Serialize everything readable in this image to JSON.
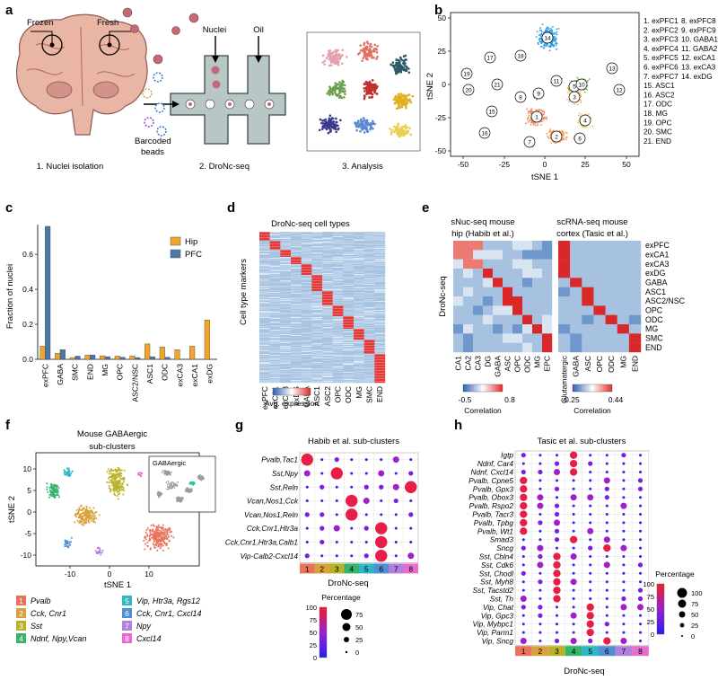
{
  "panels": {
    "a": "a",
    "b": "b",
    "c": "c",
    "d": "d",
    "e": "e",
    "f": "f",
    "g": "g",
    "h": "h"
  },
  "a": {
    "frozen": "Frozen",
    "fresh": "Fresh",
    "nuclei": "Nuclei",
    "oil": "Oil",
    "barcoded": "Barcoded",
    "beads": "beads",
    "step1": "1. Nuclei isolation",
    "step2": "2. DroNc-seq",
    "step3": "3. Analysis"
  },
  "b": {
    "xlabel": "tSNE 1",
    "ylabel": "tSNE 2",
    "xticks": [
      "-50",
      "-25",
      "0",
      "25",
      "50"
    ],
    "yticks": [
      "50",
      "25",
      "0",
      "-25",
      "-50"
    ],
    "legend_col1": [
      "1. exPFC1",
      "2. exPFC2",
      "3. exPFC3",
      "4. exPFC4",
      "5. exPFC5",
      "6. exPFC6",
      "7. exPFC7",
      "15. ASC1",
      "16. ASC2",
      "17. ODC",
      "18. MG",
      "19. OPC",
      "20. SMC",
      "21. END"
    ],
    "legend_col2": [
      "8. exPFC8",
      "9. exPFC9",
      "10. GABA1",
      "11. GABA2",
      "12. exCA1",
      "13. exCA3",
      "14. exDG"
    ],
    "cluster_labels": [
      "1",
      "2",
      "3",
      "4",
      "5",
      "6",
      "7",
      "8",
      "9",
      "10",
      "11",
      "12",
      "13",
      "14",
      "15",
      "16",
      "17",
      "18",
      "19",
      "20",
      "21"
    ]
  },
  "c": {
    "ylabel": "Fraction of nuclei",
    "legend": [
      "Hip",
      "PFC"
    ],
    "colors": {
      "Hip": "#f0a52a",
      "PFC": "#4a77a8"
    }
  },
  "chart_data": [
    {
      "type": "bar",
      "title": "",
      "xlabel": "",
      "ylabel": "Fraction of nuclei",
      "ylim": [
        0,
        0.77
      ],
      "yticks": [
        "0.0",
        "0.2",
        "0.4",
        "0.6"
      ],
      "categories": [
        "exPFC",
        "GABA",
        "SMC",
        "END",
        "MG",
        "OPC",
        "ASC2/NSC",
        "ASC1",
        "ODC",
        "exCA3",
        "exCA1",
        "exDG"
      ],
      "series": [
        {
          "name": "Hip",
          "values": [
            0.075,
            0.035,
            0.01,
            0.025,
            0.02,
            0.018,
            0.02,
            0.088,
            0.07,
            0.055,
            0.075,
            0.225
          ]
        },
        {
          "name": "PFC",
          "values": [
            0.76,
            0.055,
            0.018,
            0.025,
            0.015,
            0.012,
            0.01,
            0.015,
            0.012,
            0.0,
            0.0,
            0.0
          ]
        }
      ]
    },
    {
      "type": "heatmap",
      "title": "DroNc-seq cell types",
      "ylabel": "Cell type markers",
      "columns": [
        "exPFC",
        "exCA1",
        "exCA3",
        "exDG",
        "GABA",
        "ASC1",
        "ASC2",
        "OPC",
        "ODC",
        "MG",
        "SMC",
        "END"
      ],
      "colorbar_label": "Avg. expression"
    },
    {
      "type": "heatmap",
      "title": "sNuc-seq mouse hip (Habib et al.)",
      "ylabel": "DroNc-seq",
      "columns": [
        "CA1",
        "CA2",
        "CA3",
        "DG",
        "GABA",
        "ASC",
        "OPC",
        "ODC",
        "MG",
        "EPC"
      ],
      "rows": [
        "exPFC",
        "exCA1",
        "exCA3",
        "exDG",
        "GABA",
        "ASC1",
        "ASC2/NSC",
        "OPC",
        "ODC",
        "MG",
        "SMC",
        "END"
      ],
      "colorbar_range": [
        "-0.5",
        "0.8"
      ],
      "colorbar_label": "Correlation"
    },
    {
      "type": "heatmap",
      "title": "scRNA-seq mouse cortex (Tasic et al.)",
      "columns": [
        "Glutamatergic",
        "GABA",
        "ASC",
        "OPC",
        "ODC",
        "MG",
        "END"
      ],
      "rows": [
        "exPFC",
        "exCA1",
        "exCA3",
        "exDG",
        "GABA",
        "ASC1",
        "ASC2/NSC",
        "OPC",
        "ODC",
        "MG",
        "SMC",
        "END"
      ],
      "colorbar_range": [
        "-0.25",
        "0.44"
      ],
      "colorbar_label": "Correlation"
    },
    {
      "type": "scatter",
      "title": "Mouse GABAergic sub-clusters",
      "xlabel": "tSNE 1",
      "ylabel": "tSNE 2",
      "xticks": [
        "-10",
        "0",
        "10"
      ],
      "yticks": [
        "10",
        "5",
        "0",
        "-5",
        "-10"
      ],
      "inset_label": "GABAergic"
    },
    {
      "type": "scatter",
      "title": "Habib et al. sub-clusters",
      "xlabel": "DroNc-seq",
      "columns": [
        "1",
        "2",
        "3",
        "4",
        "5",
        "6",
        "7",
        "8"
      ],
      "rows": [
        "Pvalb,Tac1",
        "Sst,Npy",
        "Sst,Reln",
        "Vcan,Nos1,Cck",
        "Vcan,Nos1,Reln",
        "Cck,Cnr1,Htr3a",
        "Cck,Cnr1,Htr3a,Calb1",
        "Vip-Calb2-Cxcl14"
      ],
      "highlights": [
        [
          0,
          0
        ],
        [
          1,
          2
        ],
        [
          2,
          7
        ],
        [
          3,
          3
        ],
        [
          4,
          3
        ],
        [
          5,
          5
        ],
        [
          6,
          5
        ],
        [
          7,
          5
        ]
      ],
      "colorbar_title": "Percentage",
      "colorbar_ticks": [
        "100",
        "75",
        "50",
        "25",
        "0"
      ],
      "size_legend": [
        "75",
        "50",
        "25",
        "0"
      ]
    },
    {
      "type": "scatter",
      "title": "Tasic et al. sub-clusters",
      "xlabel": "DroNc-seq",
      "columns": [
        "1",
        "2",
        "3",
        "4",
        "5",
        "6",
        "7",
        "8"
      ],
      "rows": [
        "Igtp",
        "Ndnf, Car4",
        "Ndnf, Cxcl14",
        "Pvalb, Cpne5",
        "Pvalb, Gpx3",
        "Pvalb, Obox3",
        "Pvalb, Rspo2",
        "Pvalb, Tacr3",
        "Pvalb, Tpbg",
        "Pvalb, Wt1",
        "Smad3",
        "Sncg",
        "Sst, Cbln4",
        "Sst, Cdk6",
        "Sst, Chodl",
        "Sst, Myh8",
        "Sst, Tacstd2",
        "Sst, Th",
        "Vip, Chat",
        "Vip, Gpc3",
        "Vip, Mybpc1",
        "Vip, Parm1",
        "Vip, Sncg"
      ],
      "highlights": [
        [
          0,
          3
        ],
        [
          1,
          3
        ],
        [
          2,
          3
        ],
        [
          3,
          0
        ],
        [
          4,
          0
        ],
        [
          5,
          0
        ],
        [
          6,
          0
        ],
        [
          7,
          0
        ],
        [
          8,
          0
        ],
        [
          9,
          0
        ],
        [
          10,
          3
        ],
        [
          11,
          5
        ],
        [
          12,
          2
        ],
        [
          13,
          2
        ],
        [
          14,
          2
        ],
        [
          15,
          2
        ],
        [
          16,
          2
        ],
        [
          17,
          2
        ],
        [
          18,
          4
        ],
        [
          19,
          4
        ],
        [
          20,
          4
        ],
        [
          21,
          4
        ],
        [
          22,
          5
        ]
      ],
      "colorbar_title": "Percentage",
      "colorbar_ticks": [
        "100",
        "75",
        "50",
        "25",
        "0"
      ],
      "size_legend": [
        "100",
        "75",
        "50",
        "25",
        "0"
      ]
    }
  ],
  "subclusters": [
    {
      "num": "1",
      "label": "Pvalb",
      "color": "#e8735a"
    },
    {
      "num": "2",
      "label": "Cck, Cnr1",
      "color": "#d9a13a"
    },
    {
      "num": "3",
      "label": "Sst",
      "color": "#b8b326"
    },
    {
      "num": "4",
      "label": "Ndnf, Npy,Vcan",
      "color": "#36b56a"
    },
    {
      "num": "5",
      "label": "Vip, Htr3a, Rgs12",
      "color": "#2fb7c5"
    },
    {
      "num": "6",
      "label": "Cck, Cnr1, Cxcl14",
      "color": "#4f8fd6"
    },
    {
      "num": "7",
      "label": "Npy",
      "color": "#b07fe0"
    },
    {
      "num": "8",
      "label": "Cxcl14",
      "color": "#e86bd0"
    }
  ]
}
